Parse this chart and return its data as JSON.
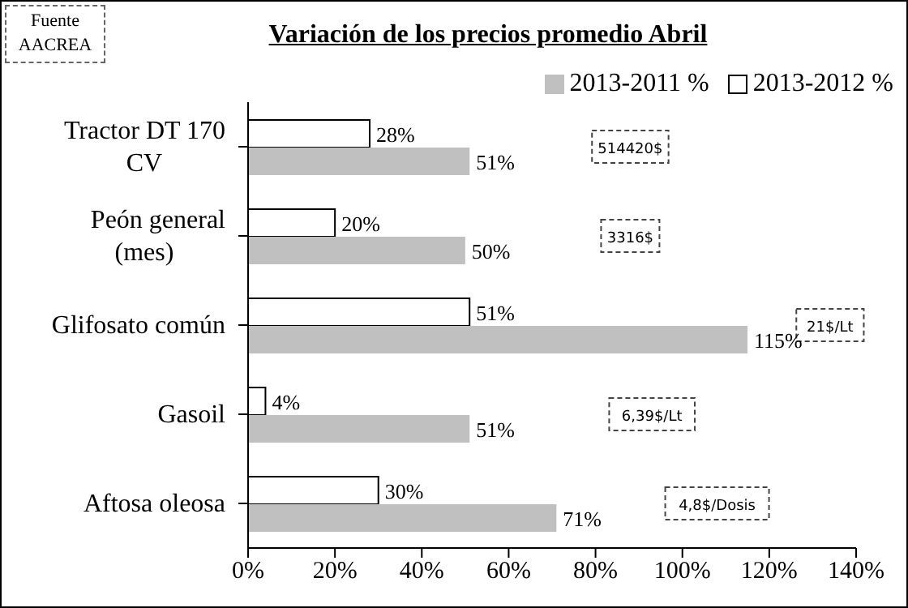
{
  "chart_data": {
    "type": "bar",
    "orientation": "horizontal",
    "title": "Variación de los precios promedio Abril",
    "categories": [
      "Tractor DT 170 CV",
      "Peón general (mes)",
      "Glifosato común",
      "Gasoil",
      "Aftosa oleosa"
    ],
    "series": [
      {
        "name": "2013-2011 %",
        "color": "#c0c0c0",
        "values": [
          51,
          50,
          115,
          51,
          71
        ],
        "value_labels": [
          "51%",
          "50%",
          "115%",
          "51%",
          "71%"
        ]
      },
      {
        "name": "2013-2012 %",
        "color": "#ffffff",
        "values": [
          28,
          20,
          51,
          4,
          30
        ],
        "value_labels": [
          "28%",
          "20%",
          "51%",
          "4%",
          "30%"
        ]
      }
    ],
    "xlim": [
      0,
      140
    ],
    "xticks": [
      {
        "value": 0,
        "label": "0%"
      },
      {
        "value": 20,
        "label": "20%"
      },
      {
        "value": 40,
        "label": "40%"
      },
      {
        "value": 60,
        "label": "60%"
      },
      {
        "value": 80,
        "label": "80%"
      },
      {
        "value": 100,
        "label": "100%"
      },
      {
        "value": 120,
        "label": "120%"
      },
      {
        "value": 140,
        "label": "140%"
      }
    ],
    "legend": "top right",
    "annotations": [
      "Fuente AACREA",
      "514420$",
      "3316$",
      "21$/Lt",
      "6,39$/Lt",
      "4,8$/Dosis"
    ]
  }
}
